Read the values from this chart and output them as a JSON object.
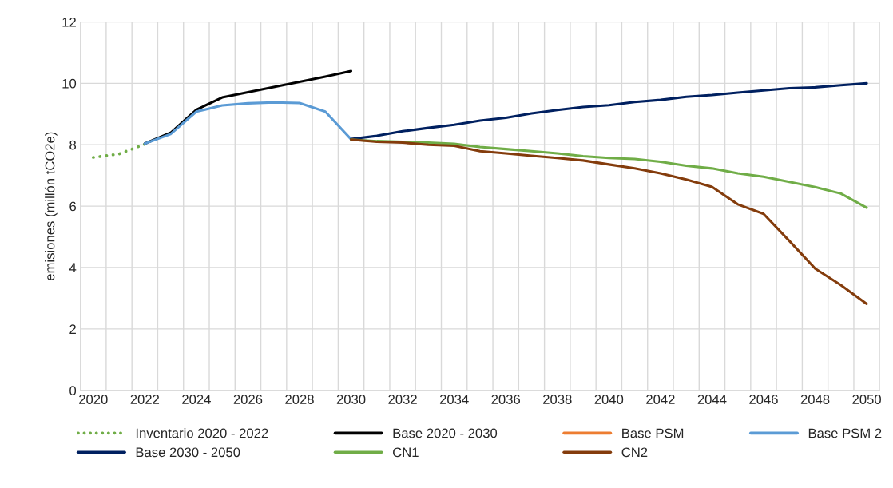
{
  "chart_data": {
    "type": "line",
    "ylabel": "emisiones (millón tCO2e)",
    "categories": [
      "2020",
      null,
      "2022",
      null,
      "2024",
      null,
      "2026",
      null,
      "2028",
      null,
      "2030",
      null,
      "2032",
      null,
      "2034",
      null,
      "2036",
      null,
      "2038",
      null,
      "2040",
      null,
      "2042",
      null,
      "2044",
      null,
      "2046",
      null,
      "2048",
      null,
      "2050"
    ],
    "series": [
      {
        "name": "Inventario 2020 - 2022",
        "color": "#70ad47",
        "line_style": "dotted",
        "values": [
          7.59,
          7.7,
          8.02,
          null,
          null,
          null,
          null,
          null,
          null,
          null,
          null,
          null,
          null,
          null,
          null,
          null,
          null,
          null,
          null,
          null,
          null,
          null,
          null,
          null,
          null,
          null,
          null,
          null,
          null,
          null,
          null
        ]
      },
      {
        "name": "Base 2020 - 2030",
        "color": "#000000",
        "line_style": "solid",
        "values": [
          null,
          null,
          8.04,
          8.39,
          9.14,
          9.54,
          9.71,
          9.88,
          10.05,
          10.22,
          10.4,
          null,
          null,
          null,
          null,
          null,
          null,
          null,
          null,
          null,
          null,
          null,
          null,
          null,
          null,
          null,
          null,
          null,
          null,
          null,
          null
        ]
      },
      {
        "name": "Base PSM",
        "color": "#ed7d31",
        "line_style": "solid",
        "values": [
          null,
          null,
          null,
          null,
          null,
          null,
          null,
          null,
          null,
          null,
          null,
          null,
          null,
          null,
          null,
          null,
          null,
          null,
          null,
          null,
          null,
          null,
          null,
          null,
          null,
          null,
          null,
          null,
          null,
          null,
          null
        ]
      },
      {
        "name": "Base PSM 2",
        "color": "#5b9bd5",
        "line_style": "solid",
        "values": [
          null,
          null,
          8.04,
          8.35,
          9.08,
          9.28,
          9.35,
          9.38,
          9.36,
          9.08,
          8.18,
          null,
          null,
          null,
          null,
          null,
          null,
          null,
          null,
          null,
          null,
          null,
          null,
          null,
          null,
          null,
          null,
          null,
          null,
          null,
          null
        ]
      },
      {
        "name": "Base 2030 - 2050",
        "color": "#002060",
        "line_style": "solid",
        "values": [
          null,
          null,
          null,
          null,
          null,
          null,
          null,
          null,
          null,
          null,
          8.19,
          8.29,
          8.44,
          8.55,
          8.65,
          8.79,
          8.88,
          9.02,
          9.13,
          9.23,
          9.29,
          9.39,
          9.46,
          9.56,
          9.62,
          9.7,
          9.77,
          9.84,
          9.87,
          9.94,
          10.0
        ]
      },
      {
        "name": "CN1",
        "color": "#70ad47",
        "line_style": "solid",
        "values": [
          null,
          null,
          null,
          null,
          null,
          null,
          null,
          null,
          null,
          null,
          8.17,
          8.12,
          8.1,
          8.07,
          8.03,
          7.93,
          7.86,
          7.79,
          7.72,
          7.63,
          7.57,
          7.54,
          7.45,
          7.32,
          7.23,
          7.07,
          6.96,
          6.79,
          6.62,
          6.41,
          5.95
        ]
      },
      {
        "name": "CN2",
        "color": "#843c0c",
        "line_style": "solid",
        "values": [
          null,
          null,
          null,
          null,
          null,
          null,
          null,
          null,
          null,
          null,
          8.17,
          8.1,
          8.07,
          8.0,
          7.97,
          7.79,
          7.72,
          7.64,
          7.57,
          7.49,
          7.36,
          7.23,
          7.07,
          6.87,
          6.63,
          6.06,
          5.75,
          4.87,
          3.97,
          3.43,
          2.82
        ]
      }
    ],
    "ylim": [
      0,
      12
    ],
    "yticks": [
      0,
      2,
      4,
      6,
      8,
      10,
      12
    ],
    "grid": true,
    "legend": "bottom",
    "marker": "none"
  }
}
